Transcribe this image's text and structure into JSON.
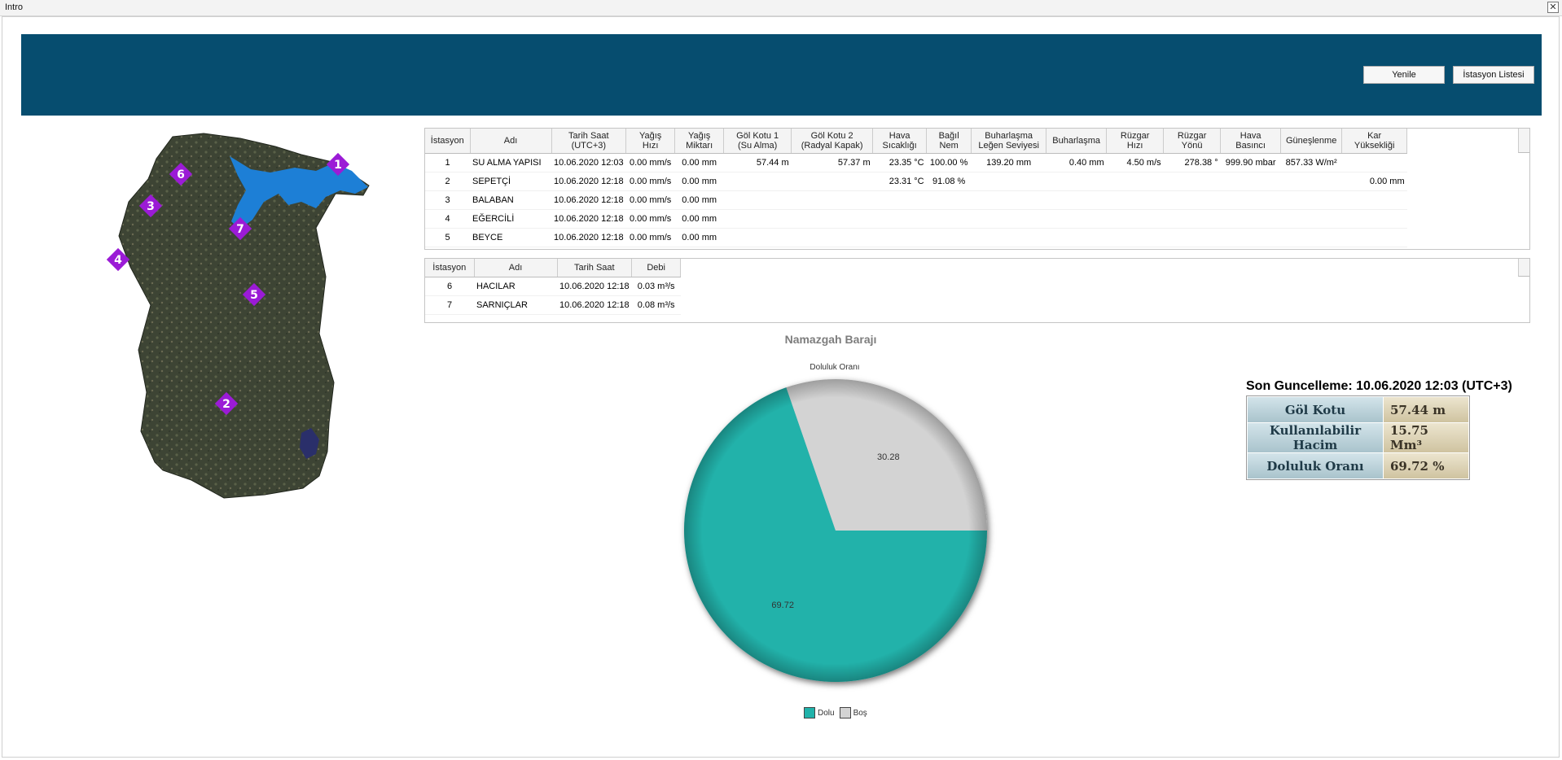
{
  "window": {
    "title": "Intro"
  },
  "toolbar": {
    "refresh_label": "Yenile",
    "station_list_label": "İstasyon Listesi"
  },
  "map": {
    "markers": [
      {
        "label": "1"
      },
      {
        "label": "2"
      },
      {
        "label": "3"
      },
      {
        "label": "4"
      },
      {
        "label": "5"
      },
      {
        "label": "6"
      },
      {
        "label": "7"
      }
    ],
    "colors": {
      "marker": "#9b1bd6",
      "lake": "#1d7fd6",
      "terrain": "#3b4232"
    }
  },
  "met_table": {
    "headers": [
      "İstasyon",
      "Adı",
      "Tarih Saat\n(UTC+3)",
      "Yağış\nHızı",
      "Yağış\nMiktarı",
      "Göl Kotu 1\n(Su Alma)",
      "Göl Kotu 2\n(Radyal Kapak)",
      "Hava\nSıcaklığı",
      "Bağıl\nNem",
      "Buharlaşma\nLeğen Seviyesi",
      "Buharlaşma",
      "Rüzgar\nHızı",
      "Rüzgar\nYönü",
      "Hava\nBasıncı",
      "Güneşlenme",
      "Kar\nYüksekliği"
    ],
    "rows": [
      [
        "1",
        "SU ALMA YAPISI",
        "10.06.2020 12:03",
        "0.00 mm/s",
        "0.00 mm",
        "57.44 m",
        "57.37 m",
        "23.35 °C",
        "100.00 %",
        "139.20 mm",
        "0.40 mm",
        "4.50 m/s",
        "278.38 °",
        "999.90 mbar",
        "857.33 W/m²",
        ""
      ],
      [
        "2",
        "SEPETÇİ",
        "10.06.2020 12:18",
        "0.00 mm/s",
        "0.00 mm",
        "",
        "",
        "23.31 °C",
        "91.08 %",
        "",
        "",
        "",
        "",
        "",
        "",
        "0.00 mm"
      ],
      [
        "3",
        "BALABAN",
        "10.06.2020 12:18",
        "0.00 mm/s",
        "0.00 mm",
        "",
        "",
        "",
        "",
        "",
        "",
        "",
        "",
        "",
        "",
        ""
      ],
      [
        "4",
        "EĞERCİLİ",
        "10.06.2020 12:18",
        "0.00 mm/s",
        "0.00 mm",
        "",
        "",
        "",
        "",
        "",
        "",
        "",
        "",
        "",
        "",
        ""
      ],
      [
        "5",
        "BEYCE",
        "10.06.2020 12:18",
        "0.00 mm/s",
        "0.00 mm",
        "",
        "",
        "",
        "",
        "",
        "",
        "",
        "",
        "",
        "",
        ""
      ]
    ]
  },
  "flow_table": {
    "headers": [
      "İstasyon",
      "Adı",
      "Tarih Saat",
      "Debi"
    ],
    "rows": [
      [
        "6",
        "HACILAR",
        "10.06.2020 12:18",
        "0.03 m³/s"
      ],
      [
        "7",
        "SARNIÇLAR",
        "10.06.2020 12:18",
        "0.08 m³/s"
      ]
    ]
  },
  "chart_data": {
    "type": "pie",
    "title": "Namazgah Barajı",
    "subtitle": "Doluluk Oranı",
    "categories": [
      "Dolu",
      "Boş"
    ],
    "values": [
      69.72,
      30.28
    ],
    "colors": [
      "#20b2aa",
      "#d3d3d3"
    ],
    "legend_position": "bottom"
  },
  "summary": {
    "last_update": "Son Guncelleme: 10.06.2020 12:03 (UTC+3)",
    "rows": [
      {
        "label": "Göl Kotu",
        "value": "57.44 m"
      },
      {
        "label": "Kullanılabilir Hacim",
        "value": "15.75 Mm³"
      },
      {
        "label": "Doluluk Oranı",
        "value": "69.72 %"
      }
    ]
  }
}
